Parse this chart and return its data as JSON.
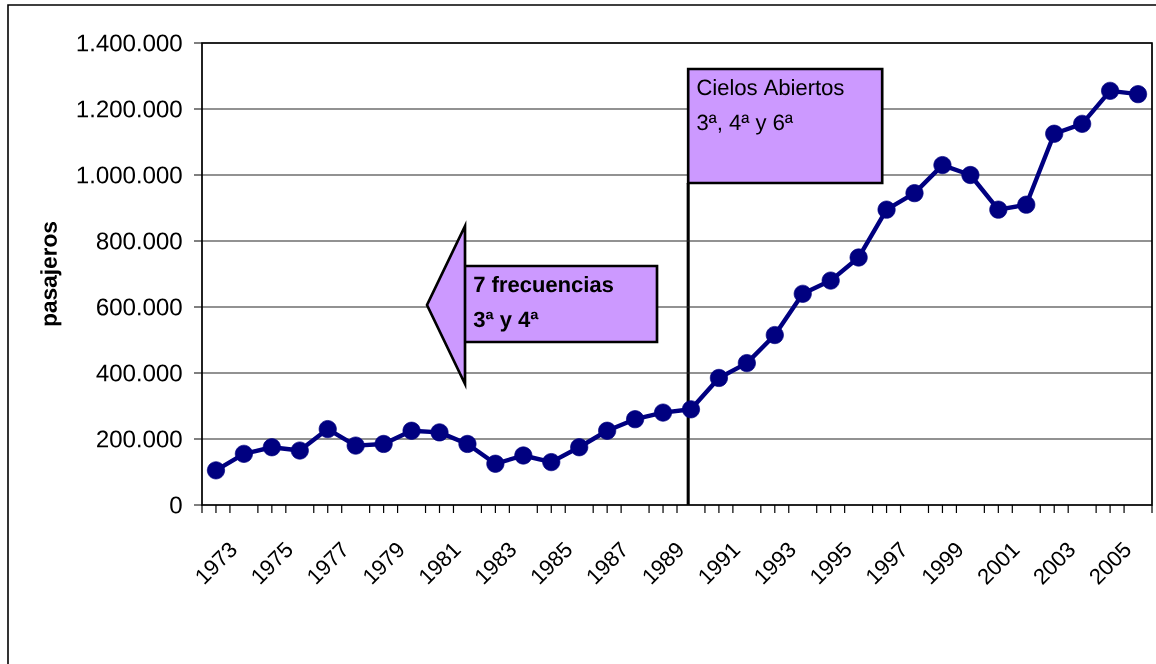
{
  "chart_data": {
    "type": "line",
    "ylabel": "pasajeros",
    "x": [
      1973,
      1974,
      1975,
      1976,
      1977,
      1978,
      1979,
      1980,
      1981,
      1982,
      1983,
      1984,
      1985,
      1986,
      1987,
      1988,
      1989,
      1990,
      1991,
      1992,
      1993,
      1994,
      1995,
      1996,
      1997,
      1998,
      1999,
      2000,
      2001,
      2002,
      2003,
      2004,
      2005,
      2006
    ],
    "values": [
      105000,
      155000,
      175000,
      165000,
      230000,
      180000,
      185000,
      225000,
      220000,
      185000,
      125000,
      150000,
      130000,
      175000,
      225000,
      260000,
      280000,
      290000,
      385000,
      430000,
      515000,
      640000,
      680000,
      750000,
      895000,
      945000,
      1030000,
      1000000,
      895000,
      910000,
      1125000,
      1155000,
      1255000,
      1245000
    ],
    "color": "#000080",
    "xlim": [
      1972.5,
      2006.5
    ],
    "xticks": [
      {
        "value": 1972.5,
        "label": null
      },
      1973,
      {
        "value": 1973.5,
        "label": null
      },
      {
        "value": 1974.5,
        "label": null
      },
      1975,
      {
        "value": 1975.5,
        "label": null
      },
      {
        "value": 1976.5,
        "label": null
      },
      1977,
      {
        "value": 1977.5,
        "label": null
      },
      {
        "value": 1978.5,
        "label": null
      },
      1979,
      {
        "value": 1979.5,
        "label": null
      },
      {
        "value": 1980.5,
        "label": null
      },
      1981,
      {
        "value": 1981.5,
        "label": null
      },
      {
        "value": 1982.5,
        "label": null
      },
      1983,
      {
        "value": 1983.5,
        "label": null
      },
      {
        "value": 1984.5,
        "label": null
      },
      1985,
      {
        "value": 1985.5,
        "label": null
      },
      {
        "value": 1986.5,
        "label": null
      },
      1987,
      {
        "value": 1987.5,
        "label": null
      },
      {
        "value": 1988.5,
        "label": null
      },
      1989,
      {
        "value": 1989.5,
        "label": null
      },
      {
        "value": 1990.5,
        "label": null
      },
      1991,
      {
        "value": 1991.5,
        "label": null
      },
      {
        "value": 1992.5,
        "label": null
      },
      1993,
      {
        "value": 1993.5,
        "label": null
      },
      {
        "value": 1994.5,
        "label": null
      },
      1995,
      {
        "value": 1995.5,
        "label": null
      },
      {
        "value": 1996.5,
        "label": null
      },
      1997,
      {
        "value": 1997.5,
        "label": null
      },
      {
        "value": 1998.5,
        "label": null
      },
      1999,
      {
        "value": 1999.5,
        "label": null
      },
      {
        "value": 2000.5,
        "label": null
      },
      2001,
      {
        "value": 2001.5,
        "label": null
      },
      {
        "value": 2002.5,
        "label": null
      },
      2003,
      {
        "value": 2003.5,
        "label": null
      },
      {
        "value": 2004.5,
        "label": null
      },
      2005,
      {
        "value": 2005.5,
        "label": null
      },
      {
        "value": 2006.5,
        "label": null
      }
    ],
    "ylim": [
      0,
      1400000
    ],
    "yticks": [
      0,
      {
        "value": 200000,
        "label": "200.000"
      },
      {
        "value": 400000,
        "label": "400.000"
      },
      {
        "value": 600000,
        "label": "600.000"
      },
      {
        "value": 800000,
        "label": "800.000"
      },
      {
        "value": 1000000,
        "label": "1.000.000"
      },
      {
        "value": 1200000,
        "label": "1.200.000"
      },
      {
        "value": 1400000,
        "label": "1.400.000"
      }
    ],
    "grid": "y",
    "marker": "circle",
    "line_style": "solid",
    "ref_lines": [
      {
        "axis": "x",
        "value": 1989.9,
        "color": "#000000"
      }
    ],
    "annotations": [
      "Cielos Abiertos",
      "3ª, 4ª y 6ª",
      "7 frecuencias",
      "3ª y 4ª"
    ]
  }
}
